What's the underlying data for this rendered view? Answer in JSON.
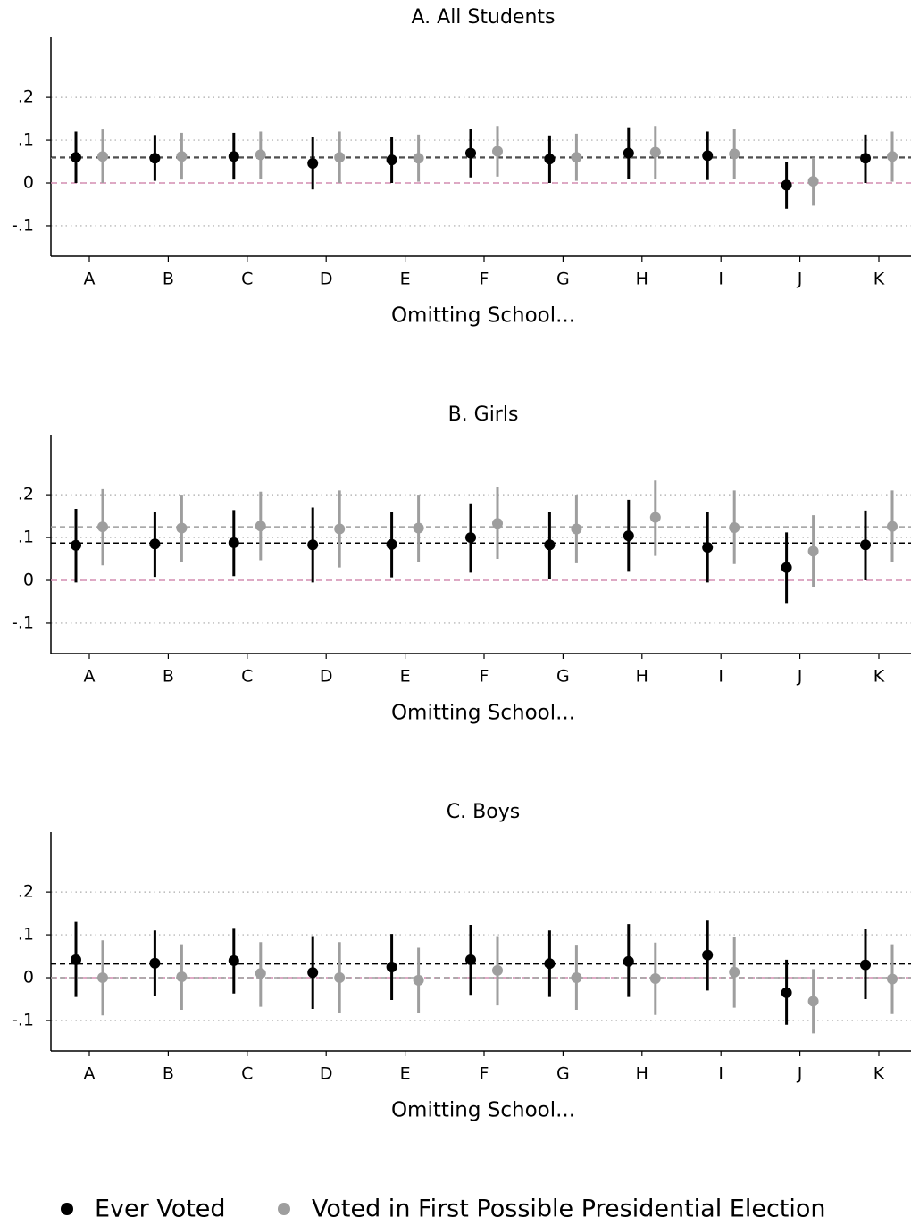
{
  "chart_data": [
    {
      "type": "errorbar",
      "title": "A. All Students",
      "xlabel": "Omitting School...",
      "categories": [
        "A",
        "B",
        "C",
        "D",
        "E",
        "F",
        "G",
        "H",
        "I",
        "J",
        "K"
      ],
      "ylim": [
        -0.171,
        0.34
      ],
      "yticks": [
        {
          "value": 0.2,
          "label": ".2"
        },
        {
          "value": 0.1,
          "label": ".1"
        },
        0,
        {
          "value": -0.1,
          "label": "-.1"
        }
      ],
      "grid": true,
      "hline": 0,
      "hline_color": "#d58fb3",
      "series": [
        {
          "color": "#000000",
          "ref": 0.06,
          "values": [
            0.06,
            0.058,
            0.062,
            0.046,
            0.054,
            0.07,
            0.056,
            0.07,
            0.064,
            -0.005,
            0.058
          ],
          "lower": [
            0,
            0.005,
            0.008,
            -0.015,
            0,
            0.013,
            0,
            0.01,
            0.007,
            -0.06,
            0
          ],
          "upper": [
            0.12,
            0.112,
            0.117,
            0.107,
            0.108,
            0.126,
            0.111,
            0.13,
            0.12,
            0.05,
            0.113
          ]
        },
        {
          "color": "#9e9e9e",
          "ref": 0.058,
          "values": [
            0.062,
            0.062,
            0.066,
            0.06,
            0.058,
            0.074,
            0.06,
            0.072,
            0.068,
            0.004,
            0.062
          ],
          "lower": [
            0,
            0.008,
            0.01,
            0,
            0.003,
            0.015,
            0.005,
            0.01,
            0.01,
            -0.053,
            0.003
          ],
          "upper": [
            0.125,
            0.117,
            0.12,
            0.12,
            0.113,
            0.133,
            0.115,
            0.133,
            0.126,
            0.06,
            0.12
          ]
        }
      ]
    },
    {
      "type": "errorbar",
      "title": "B. Girls",
      "xlabel": "Omitting School...",
      "categories": [
        "A",
        "B",
        "C",
        "D",
        "E",
        "F",
        "G",
        "H",
        "I",
        "J",
        "K"
      ],
      "ylim": [
        -0.171,
        0.34
      ],
      "yticks": [
        {
          "value": 0.2,
          "label": ".2"
        },
        {
          "value": 0.1,
          "label": ".1"
        },
        0,
        {
          "value": -0.1,
          "label": "-.1"
        }
      ],
      "grid": true,
      "hline": 0,
      "hline_color": "#d58fb3",
      "series": [
        {
          "color": "#000000",
          "ref": 0.087,
          "values": [
            0.082,
            0.085,
            0.088,
            0.083,
            0.084,
            0.1,
            0.083,
            0.104,
            0.077,
            0.03,
            0.083
          ],
          "lower": [
            -0.005,
            0.008,
            0.01,
            -0.005,
            0.007,
            0.018,
            0.003,
            0.02,
            -0.005,
            -0.053,
            0
          ],
          "upper": [
            0.167,
            0.16,
            0.164,
            0.17,
            0.16,
            0.18,
            0.16,
            0.188,
            0.16,
            0.112,
            0.163
          ]
        },
        {
          "color": "#9e9e9e",
          "ref": 0.125,
          "values": [
            0.125,
            0.122,
            0.127,
            0.12,
            0.122,
            0.133,
            0.12,
            0.147,
            0.123,
            0.068,
            0.126
          ],
          "lower": [
            0.035,
            0.043,
            0.047,
            0.03,
            0.043,
            0.05,
            0.04,
            0.057,
            0.038,
            -0.015,
            0.042
          ],
          "upper": [
            0.213,
            0.2,
            0.207,
            0.21,
            0.2,
            0.218,
            0.2,
            0.233,
            0.21,
            0.152,
            0.21
          ]
        }
      ]
    },
    {
      "type": "errorbar",
      "title": "C. Boys",
      "xlabel": "Omitting School...",
      "categories": [
        "A",
        "B",
        "C",
        "D",
        "E",
        "F",
        "G",
        "H",
        "I",
        "J",
        "K"
      ],
      "ylim": [
        -0.171,
        0.34
      ],
      "yticks": [
        {
          "value": 0.2,
          "label": ".2"
        },
        {
          "value": 0.1,
          "label": ".1"
        },
        0,
        {
          "value": -0.1,
          "label": "-.1"
        }
      ],
      "grid": true,
      "hline": 0,
      "hline_color": "#d58fb3",
      "series": [
        {
          "color": "#000000",
          "ref": 0.032,
          "values": [
            0.042,
            0.034,
            0.04,
            0.012,
            0.025,
            0.042,
            0.033,
            0.038,
            0.053,
            -0.035,
            0.03
          ],
          "lower": [
            -0.045,
            -0.043,
            -0.037,
            -0.073,
            -0.052,
            -0.04,
            -0.045,
            -0.045,
            -0.03,
            -0.11,
            -0.05
          ],
          "upper": [
            0.13,
            0.11,
            0.116,
            0.097,
            0.102,
            0.123,
            0.11,
            0.125,
            0.135,
            0.042,
            0.113
          ]
        },
        {
          "color": "#9e9e9e",
          "ref": 0,
          "values": [
            0,
            0.002,
            0.01,
            0,
            -0.006,
            0.017,
            0,
            -0.002,
            0.013,
            -0.055,
            -0.003
          ],
          "lower": [
            -0.088,
            -0.075,
            -0.068,
            -0.082,
            -0.083,
            -0.065,
            -0.075,
            -0.087,
            -0.07,
            -0.13,
            -0.085
          ],
          "upper": [
            0.087,
            0.078,
            0.083,
            0.083,
            0.07,
            0.097,
            0.077,
            0.082,
            0.095,
            0.02,
            0.078
          ]
        }
      ]
    }
  ],
  "legend": {
    "entries": [
      {
        "name": "Ever Voted",
        "color": "#000000"
      },
      {
        "name": "Voted in First Possible Presidential Election",
        "color": "#9e9e9e"
      }
    ]
  }
}
